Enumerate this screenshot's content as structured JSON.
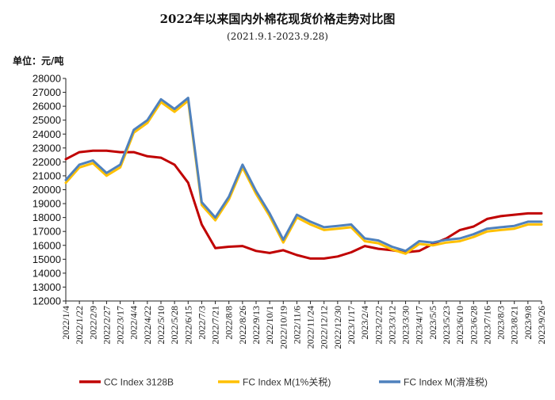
{
  "chart_data": {
    "type": "line",
    "title": "2022年以来国内外棉花现货价格走势对比图",
    "subtitle": "(2021.9.1-2023.9.28)",
    "ylabel": "单位：元/吨",
    "ylim": [
      12000,
      28000
    ],
    "yticks": [
      "28000",
      "27000",
      "26000",
      "25000",
      "24000",
      "23000",
      "22000",
      "21000",
      "20000",
      "19000",
      "18000",
      "17000",
      "16000",
      "15000",
      "14000",
      "13000",
      "12000"
    ],
    "categories": [
      "2022/1/4",
      "2022/1/22",
      "2022/2/9",
      "2022/2/27",
      "2022/3/17",
      "2022/4/4",
      "2022/4/22",
      "2022/5/10",
      "2022/5/28",
      "2022/6/15",
      "2022/7/3",
      "2022/7/21",
      "2022/8/8",
      "2022/8/26",
      "2022/9/13",
      "2022/10/1",
      "2022/10/19",
      "2022/11/6",
      "2022/11/24",
      "2022/12/12",
      "2022/12/30",
      "2023/1/17",
      "2023/2/4",
      "2023/2/22",
      "2023/3/12",
      "2023/3/30",
      "2023/4/17",
      "2023/5/5",
      "2023/5/23",
      "2023/6/10",
      "2023/6/28",
      "2023/7/16",
      "2023/8/3",
      "2023/8/21",
      "2023/9/8",
      "2023/9/26"
    ],
    "grid": false,
    "legend_position": "bottom",
    "series": [
      {
        "name": "CC Index 3128B",
        "color": "#c00000",
        "values": [
          22200,
          22700,
          22800,
          22800,
          22700,
          22700,
          22400,
          22300,
          21800,
          20500,
          17500,
          15800,
          15900,
          15950,
          15600,
          15450,
          15650,
          15300,
          15050,
          15050,
          15200,
          15500,
          15950,
          15750,
          15650,
          15500,
          15600,
          16100,
          16500,
          17100,
          17350,
          17900,
          18100,
          18200,
          18300,
          18300
        ]
      },
      {
        "name": "FC Index M(1%关税)",
        "color": "#ffc000",
        "values": [
          20500,
          21600,
          21900,
          21000,
          21600,
          24100,
          24800,
          26300,
          25600,
          26400,
          18900,
          17800,
          19300,
          21600,
          19700,
          18100,
          16200,
          18000,
          17500,
          17100,
          17200,
          17300,
          16300,
          16150,
          15700,
          15400,
          16100,
          16000,
          16200,
          16300,
          16600,
          17000,
          17100,
          17200,
          17500,
          17500
        ]
      },
      {
        "name": "FC Index M(滑准税)",
        "color": "#4f81bd",
        "values": [
          20700,
          21800,
          22100,
          21200,
          21800,
          24300,
          25000,
          26500,
          25800,
          26600,
          19100,
          18000,
          19500,
          21800,
          19900,
          18300,
          16400,
          18200,
          17700,
          17300,
          17400,
          17500,
          16500,
          16350,
          15900,
          15600,
          16300,
          16200,
          16400,
          16500,
          16800,
          17200,
          17300,
          17400,
          17700,
          17700
        ]
      }
    ]
  }
}
